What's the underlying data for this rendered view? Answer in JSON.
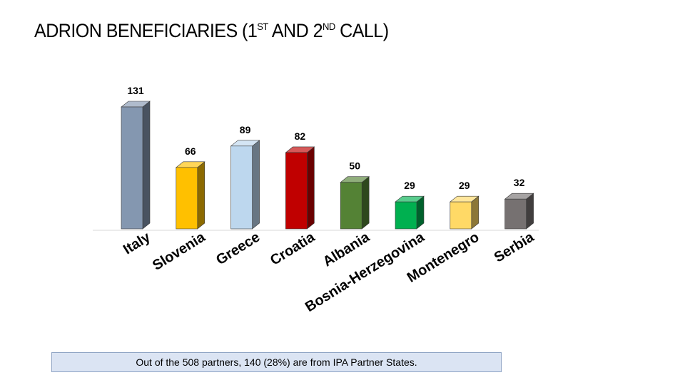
{
  "title": {
    "main": "ADRION BENEFICIARIES (1",
    "sup1": "ST",
    "mid": " AND 2",
    "sup2": "ND",
    "end": " CALL)"
  },
  "footnote": "Out of the 508 partners, 140 (28%) are from IPA Partner States.",
  "chart_data": {
    "type": "bar",
    "categories": [
      "Italy",
      "Slovenia",
      "Greece",
      "Croatia",
      "Albania",
      "Bosnia-Herzegovina",
      "Montenegro",
      "Serbia"
    ],
    "values": [
      131,
      66,
      89,
      82,
      50,
      29,
      29,
      32
    ],
    "colors": [
      "#8497b0",
      "#ffc000",
      "#bdd7ee",
      "#c00000",
      "#548235",
      "#00b050",
      "#ffd966",
      "#767171"
    ],
    "title": "ADRION BENEFICIARIES (1ST AND 2ND CALL)",
    "xlabel": "",
    "ylabel": "",
    "ylim": [
      0,
      131
    ],
    "grid": false,
    "legend": "none",
    "bar_style": "3d"
  }
}
